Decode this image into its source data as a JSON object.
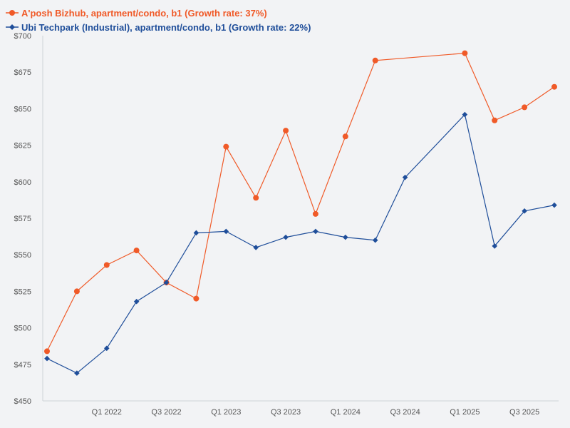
{
  "chart_data": {
    "type": "line",
    "title": "",
    "xlabel": "",
    "ylabel": "",
    "ylim": [
      450,
      700
    ],
    "yticks": [
      450,
      475,
      500,
      525,
      550,
      575,
      600,
      625,
      650,
      675,
      700
    ],
    "ytick_labels": [
      "$450",
      "$475",
      "$500",
      "$525",
      "$550",
      "$575",
      "$600",
      "$625",
      "$650",
      "$675",
      "$700"
    ],
    "x": [
      "Q3 2021",
      "Q4 2021",
      "Q1 2022",
      "Q2 2022",
      "Q3 2022",
      "Q4 2022",
      "Q1 2023",
      "Q2 2023",
      "Q3 2023",
      "Q4 2023",
      "Q1 2024",
      "Q2 2024",
      "Q3 2024",
      "Q4 2024",
      "Q1 2025",
      "Q2 2025",
      "Q3 2025",
      "Q4 2025"
    ],
    "xtick_labels": [
      "Q1 2022",
      "Q3 2022",
      "Q1 2023",
      "Q3 2023",
      "Q1 2024",
      "Q3 2024",
      "Q1 2025",
      "Q3 2025"
    ],
    "legend_position": "top-left",
    "series": [
      {
        "name": "A'posh Bizhub, apartment/condo, b1 (Growth rate: 37%)",
        "color": "#f05a28",
        "marker": "circle",
        "values": [
          484,
          525,
          543,
          553,
          531,
          520,
          624,
          589,
          635,
          578,
          631,
          683,
          null,
          null,
          688,
          642,
          651,
          665
        ],
        "note": "Q3 2021..Q4 2025; gap positions are null"
      },
      {
        "name": "Ubi Techpark (Industrial), apartment/condo, b1 (Growth rate: 22%)",
        "color": "#1f4e9a",
        "marker": "diamond",
        "values": [
          479,
          469,
          486,
          518,
          531,
          565,
          566,
          555,
          562,
          566,
          562,
          560,
          603,
          null,
          646,
          556,
          580,
          584
        ]
      }
    ]
  }
}
